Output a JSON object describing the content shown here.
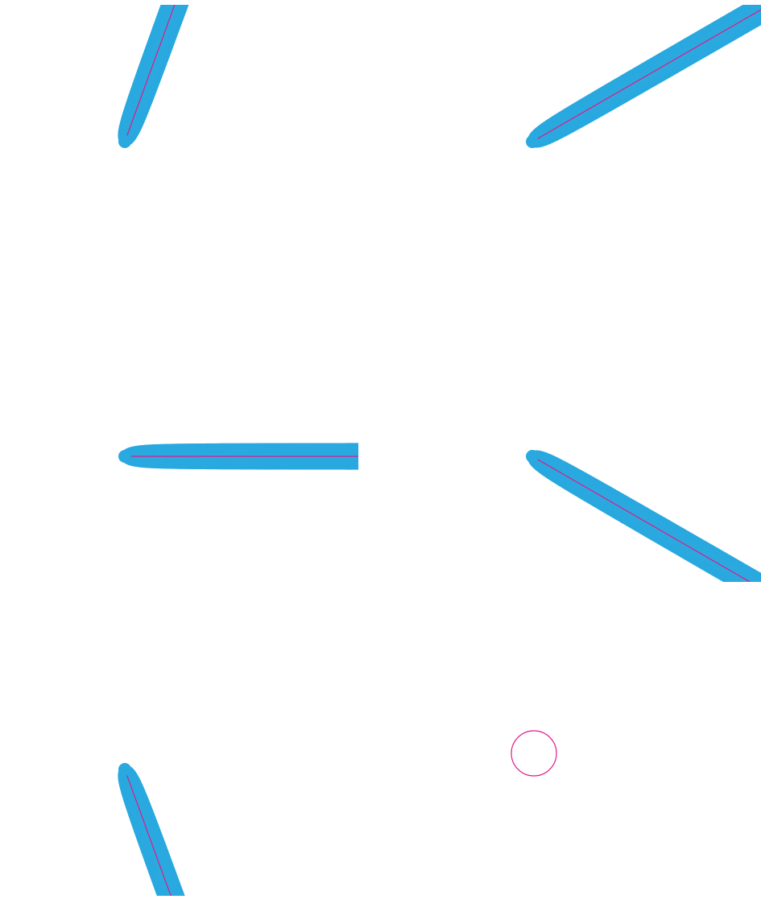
{
  "figure": {
    "description_text": "",
    "colors": {
      "background": "#ffffff",
      "background_streamline": "#000000",
      "captured_streamline": "#29a9df",
      "separatrix": "#e0198c"
    },
    "panels": [
      {
        "id": "top-left",
        "flow_angle_deg": -70,
        "source": true
      },
      {
        "id": "top-right",
        "flow_angle_deg": -30,
        "source": true
      },
      {
        "id": "middle-left",
        "flow_angle_deg": 0,
        "source": true
      },
      {
        "id": "middle-right",
        "flow_angle_deg": 30,
        "source": true
      },
      {
        "id": "bottom-left",
        "flow_angle_deg": 70,
        "source": true
      },
      {
        "id": "bottom-right",
        "flow_angle_deg": -80,
        "source": false
      }
    ]
  }
}
